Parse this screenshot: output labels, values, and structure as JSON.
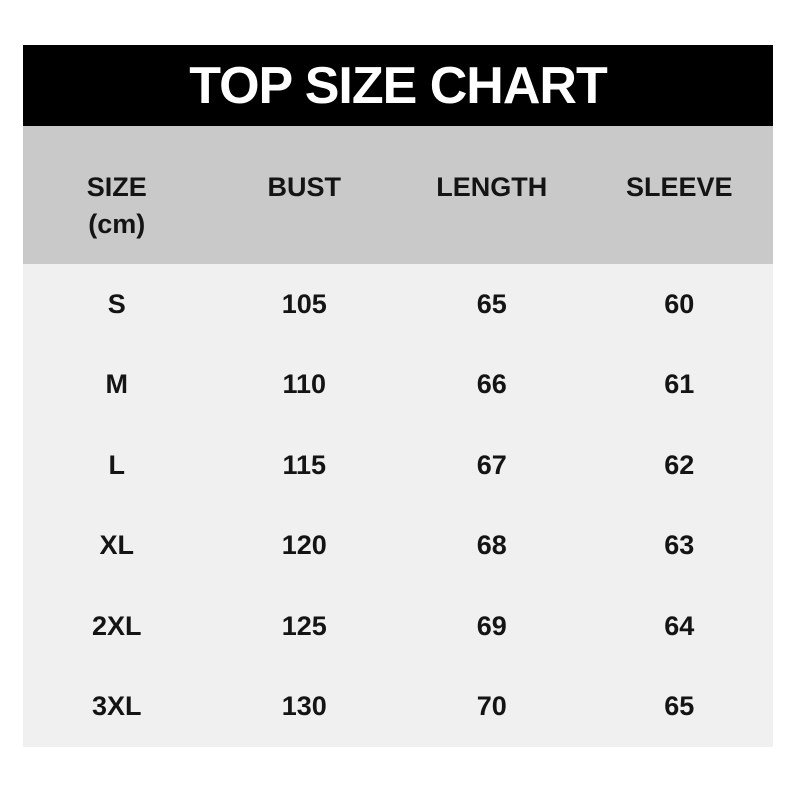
{
  "title": {
    "text": "TOP SIZE CHART"
  },
  "header": {
    "size_label": "SIZE",
    "size_unit": "(cm)",
    "bust_label": "BUST",
    "length_label": "LENGTH",
    "sleeve_label": "SLEEVE"
  },
  "colors": {
    "title_bg": "#000000",
    "title_text": "#ffffff",
    "header_bg": "#c9c9c9",
    "body_bg": "#f1f0f0",
    "text": "#141414",
    "page_bg": "#ffffff"
  },
  "chart_data": {
    "type": "table",
    "title": "TOP SIZE CHART",
    "unit": "cm",
    "columns": [
      "SIZE (cm)",
      "BUST",
      "LENGTH",
      "SLEEVE"
    ],
    "rows": [
      [
        "S",
        "105",
        "65",
        "60"
      ],
      [
        "M",
        "110",
        "66",
        "61"
      ],
      [
        "L",
        "115",
        "67",
        "62"
      ],
      [
        "XL",
        "120",
        "68",
        "63"
      ],
      [
        "2XL",
        "125",
        "69",
        "64"
      ],
      [
        "3XL",
        "130",
        "70",
        "65"
      ]
    ]
  }
}
